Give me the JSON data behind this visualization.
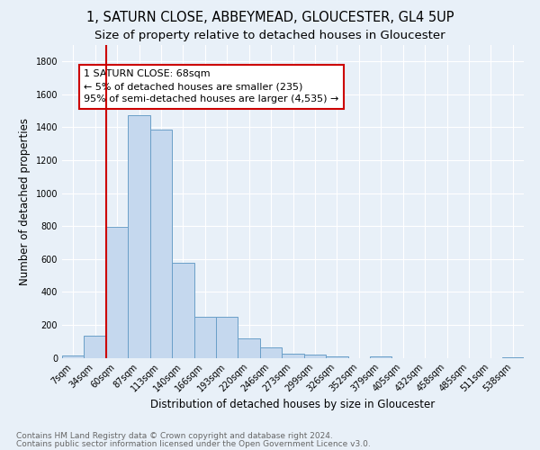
{
  "title": "1, SATURN CLOSE, ABBEYMEAD, GLOUCESTER, GL4 5UP",
  "subtitle": "Size of property relative to detached houses in Gloucester",
  "xlabel": "Distribution of detached houses by size in Gloucester",
  "ylabel": "Number of detached properties",
  "bin_labels": [
    "7sqm",
    "34sqm",
    "60sqm",
    "87sqm",
    "113sqm",
    "140sqm",
    "166sqm",
    "193sqm",
    "220sqm",
    "246sqm",
    "273sqm",
    "299sqm",
    "326sqm",
    "352sqm",
    "379sqm",
    "405sqm",
    "432sqm",
    "458sqm",
    "485sqm",
    "511sqm",
    "538sqm"
  ],
  "bar_values": [
    15,
    135,
    795,
    1475,
    1385,
    575,
    248,
    248,
    115,
    65,
    25,
    18,
    10,
    0,
    10,
    0,
    0,
    0,
    0,
    0,
    5
  ],
  "bar_color": "#c5d8ee",
  "bar_edge_color": "#6a9fc8",
  "vline_x": 2,
  "vline_color": "#cc0000",
  "annotation_text": "1 SATURN CLOSE: 68sqm\n← 5% of detached houses are smaller (235)\n95% of semi-detached houses are larger (4,535) →",
  "annotation_box_color": "white",
  "annotation_box_edge": "#cc0000",
  "ylim": [
    0,
    1900
  ],
  "yticks": [
    0,
    200,
    400,
    600,
    800,
    1000,
    1200,
    1400,
    1600,
    1800
  ],
  "footer_line1": "Contains HM Land Registry data © Crown copyright and database right 2024.",
  "footer_line2": "Contains public sector information licensed under the Open Government Licence v3.0.",
  "background_color": "#e8f0f8",
  "grid_color": "white",
  "title_fontsize": 10.5,
  "subtitle_fontsize": 9.5,
  "axis_label_fontsize": 8.5,
  "tick_fontsize": 7,
  "footer_fontsize": 6.5,
  "annot_fontsize": 8
}
